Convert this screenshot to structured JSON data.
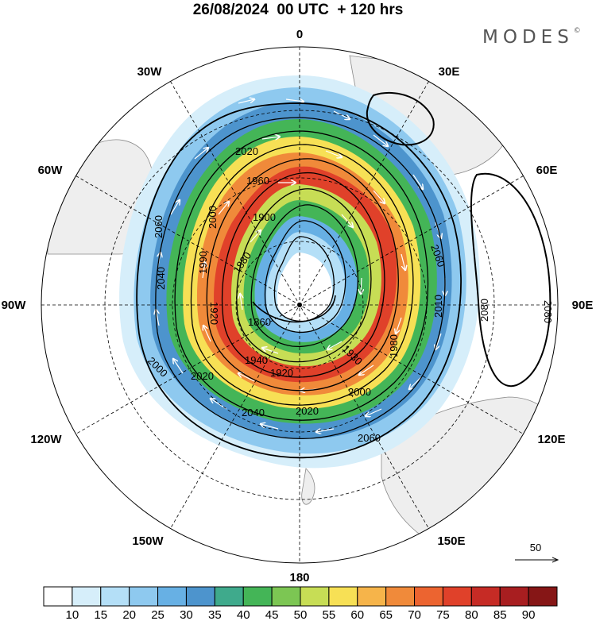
{
  "title": "26/08/2024  00 UTC  + 120 hrs",
  "brand": "MODES",
  "brand_mark": "©",
  "longitude_labels": {
    "deg0": "0",
    "e30": "30E",
    "e60": "60E",
    "e90": "90E",
    "e120": "120E",
    "e150": "150E",
    "deg180": "180",
    "w150": "150W",
    "w120": "120W",
    "w90": "90W",
    "w60": "60W",
    "w30": "30W"
  },
  "contour_labels": [
    "2020",
    "1960",
    "1900",
    "1880",
    "1860",
    "1920",
    "1940",
    "2000",
    "2040",
    "2060",
    "2080",
    "2010",
    "1980",
    "1990",
    "1930"
  ],
  "vector_reference": "50",
  "colorbar": {
    "labels": [
      "10",
      "15",
      "20",
      "25",
      "30",
      "35",
      "40",
      "45",
      "50",
      "55",
      "60",
      "65",
      "70",
      "75",
      "80",
      "85",
      "90"
    ],
    "colors": [
      "#ffffff",
      "#d6eefa",
      "#b4dff7",
      "#8ec9ef",
      "#67b0e4",
      "#4d94cd",
      "#3faa8c",
      "#44b557",
      "#7cc653",
      "#c7dd55",
      "#f7e055",
      "#f6b44a",
      "#f08a3a",
      "#ec6430",
      "#e0412a",
      "#c62b25",
      "#a81e20",
      "#861616"
    ]
  },
  "style": {
    "land": "#eeeeee",
    "ocean": "#ffffff",
    "contour": "#000000",
    "wind_arrow": "#ffffff"
  }
}
